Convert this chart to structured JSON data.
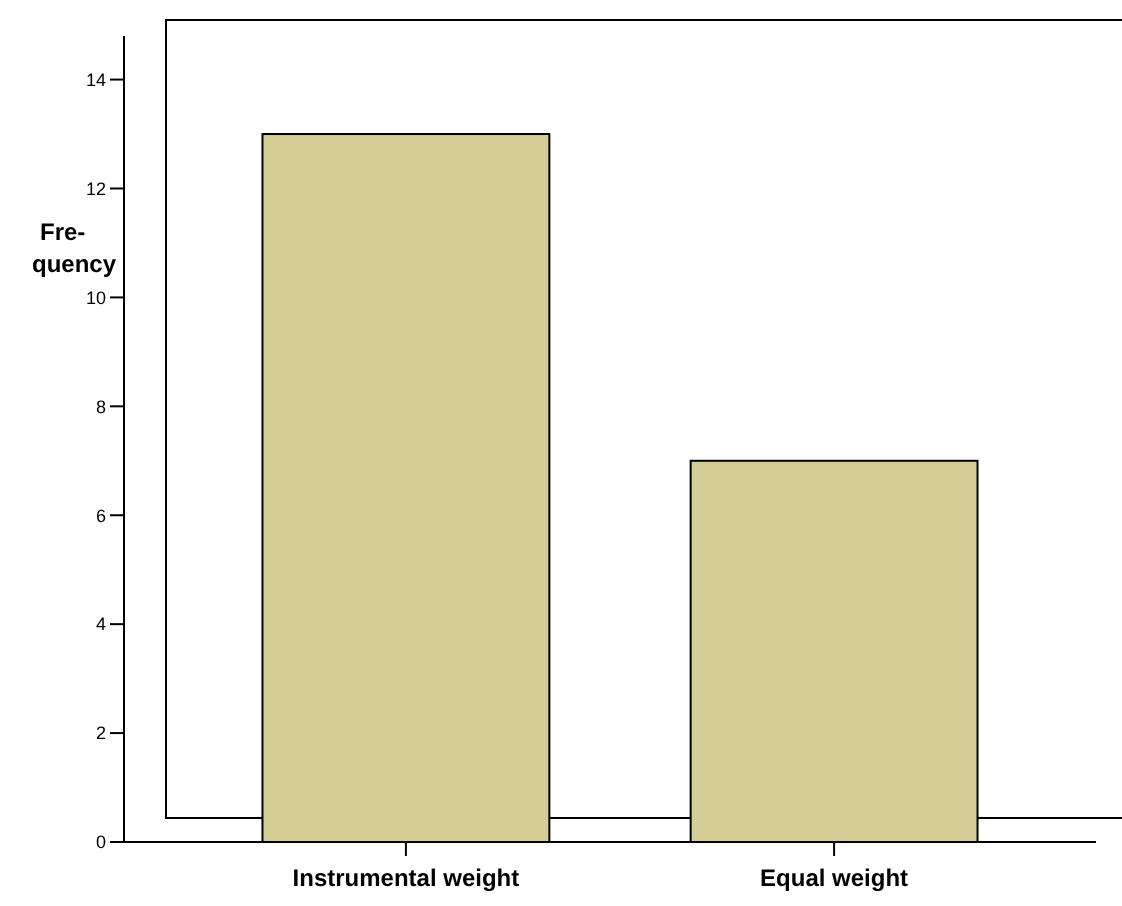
{
  "chart_data": {
    "type": "bar",
    "ylabel": "Fre- quency",
    "categories": [
      "Instrumental weight",
      "Equal weight"
    ],
    "values": [
      13,
      7
    ],
    "color": "#d3cd96",
    "ylim": [
      0,
      14.8
    ],
    "yticks": [
      0,
      2,
      4,
      6,
      8,
      10,
      12,
      14
    ],
    "grid": false
  }
}
